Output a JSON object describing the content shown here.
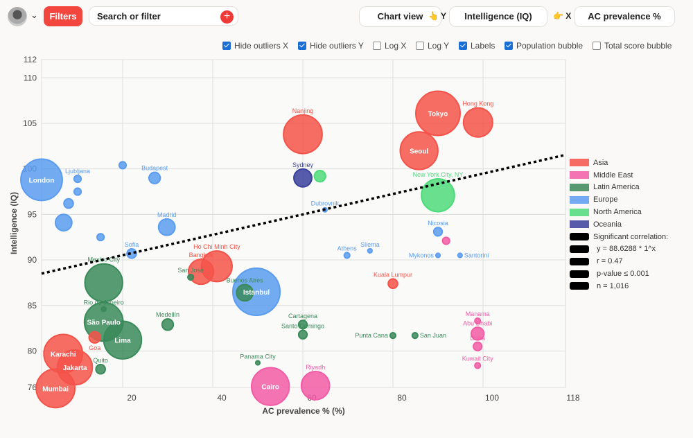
{
  "toolbar": {
    "filters_label": "Filters",
    "search_placeholder": "Search or filter",
    "chart_view_label": "Chart view",
    "y_prefix": "👆 Y",
    "y_value": "Intelligence (IQ)",
    "x_prefix": "👉 X",
    "x_value": "AC prevalence %"
  },
  "options": [
    {
      "label": "Hide outliers X",
      "checked": true
    },
    {
      "label": "Hide outliers Y",
      "checked": true
    },
    {
      "label": "Log X",
      "checked": false
    },
    {
      "label": "Log Y",
      "checked": false
    },
    {
      "label": "Labels",
      "checked": true
    },
    {
      "label": "Population bubble",
      "checked": true
    },
    {
      "label": "Total score bubble",
      "checked": false
    }
  ],
  "chart_data": {
    "type": "scatter",
    "xlabel": "AC prevalence % (%)",
    "ylabel": "Intelligence (IQ)",
    "xlim": [
      2,
      118
    ],
    "ylim": [
      76,
      112
    ],
    "xticks": [
      20,
      40,
      60,
      80,
      100,
      118
    ],
    "yticks": [
      76,
      80,
      85,
      90,
      95,
      100,
      105,
      110,
      112
    ],
    "grid": true,
    "legend_position": "right",
    "colors": {
      "Asia": "#f4534a",
      "Middle East": "#f25ca6",
      "Latin America": "#3a8a5a",
      "Europe": "#5a9cf0",
      "North America": "#4ddb7a",
      "Oceania": "#3a3f9c"
    },
    "legend": [
      "Asia",
      "Middle East",
      "Latin America",
      "Europe",
      "North America",
      "Oceania"
    ],
    "trend": {
      "points": [
        [
          2,
          88.5
        ],
        [
          118,
          101.5
        ]
      ],
      "lines": [
        "Significant correlation:",
        "y = 88.6288 * 1^x",
        "r = 0.47",
        "p-value ≤ 0.001",
        "n = 1,016"
      ]
    },
    "points": [
      {
        "label": "Tokyo",
        "region": "Asia",
        "x": 90,
        "y": 106.1,
        "size": 0.94,
        "inside": true
      },
      {
        "label": "Hong Kong",
        "region": "Asia",
        "x": 98.9,
        "y": 105.1,
        "size": 0.62
      },
      {
        "label": "Seoul",
        "region": "Asia",
        "x": 85.8,
        "y": 102,
        "size": 0.8,
        "inside": true
      },
      {
        "label": "Nanjing",
        "region": "Asia",
        "x": 60,
        "y": 103.8,
        "size": 0.82
      },
      {
        "label": "Ho Chi Minh City",
        "region": "Asia",
        "x": 40.9,
        "y": 89.3,
        "size": 0.65
      },
      {
        "label": "Bangkok",
        "region": "Asia",
        "x": 37.4,
        "y": 88.7,
        "size": 0.53
      },
      {
        "label": "Kuala Lumpur",
        "region": "Asia",
        "x": 80,
        "y": 87.4,
        "size": 0.2
      },
      {
        "label": "Karachi",
        "region": "Asia",
        "x": 6.8,
        "y": 79.7,
        "size": 0.82,
        "inside": true
      },
      {
        "label": "Jakarta",
        "region": "Asia",
        "x": 9.4,
        "y": 78.2,
        "size": 0.74,
        "inside": true
      },
      {
        "label": "Mumbai",
        "region": "Asia",
        "x": 5.1,
        "y": 75.9,
        "size": 0.82,
        "inside": true
      },
      {
        "label": "Goa",
        "region": "Asia",
        "x": 13.8,
        "y": 81.5,
        "size": 0.24
      },
      {
        "label": "Cairo",
        "region": "Middle East",
        "x": 52.8,
        "y": 76.1,
        "size": 0.8,
        "inside": true
      },
      {
        "label": "Riyadh",
        "region": "Middle East",
        "x": 62.8,
        "y": 76.2,
        "size": 0.6
      },
      {
        "label": "Manama",
        "region": "Middle East",
        "x": 98.8,
        "y": 83.3,
        "size": 0.12
      },
      {
        "label": "Abu Dhabi",
        "region": "Middle East",
        "x": 98.8,
        "y": 81.9,
        "size": 0.27
      },
      {
        "label": "Doha",
        "region": "Middle East",
        "x": 98.8,
        "y": 80.5,
        "size": 0.18
      },
      {
        "label": "Kuwait City",
        "region": "Middle East",
        "x": 98.8,
        "y": 78.4,
        "size": 0.12
      },
      {
        "label": "",
        "region": "Middle East",
        "x": 91.8,
        "y": 92.1,
        "size": 0.15
      },
      {
        "label": "Mexico City",
        "region": "Latin America",
        "x": 15.8,
        "y": 87.5,
        "size": 0.8
      },
      {
        "label": "São Paulo",
        "region": "Latin America",
        "x": 15.8,
        "y": 83.2,
        "size": 0.82,
        "inside": true
      },
      {
        "label": "Rio de Janeiro",
        "region": "Latin America",
        "x": 15.8,
        "y": 84.6,
        "size": 0.1
      },
      {
        "label": "Lima",
        "region": "Latin America",
        "x": 20,
        "y": 81.2,
        "size": 0.8,
        "inside": true
      },
      {
        "label": "Medellín",
        "region": "Latin America",
        "x": 30,
        "y": 82.9,
        "size": 0.24
      },
      {
        "label": "Buenos Aires",
        "region": "Latin America",
        "x": 47.1,
        "y": 86.4,
        "size": 0.35
      },
      {
        "label": "San José",
        "region": "Latin America",
        "x": 35.1,
        "y": 88.1,
        "size": 0.12
      },
      {
        "label": "Cartagena",
        "region": "Latin America",
        "x": 60,
        "y": 82.9,
        "size": 0.18
      },
      {
        "label": "Santo Domingo",
        "region": "Latin America",
        "x": 60,
        "y": 81.8,
        "size": 0.18
      },
      {
        "label": "Punta Cana",
        "region": "Latin America",
        "x": 80,
        "y": 81.7,
        "size": 0.12
      },
      {
        "label": "San Juan",
        "region": "Latin America",
        "x": 84.9,
        "y": 81.7,
        "size": 0.12
      },
      {
        "label": "Panama City",
        "region": "Latin America",
        "x": 50,
        "y": 78.7,
        "size": 0.09
      },
      {
        "label": "Quito",
        "region": "Latin America",
        "x": 15.1,
        "y": 78,
        "size": 0.2
      },
      {
        "label": "London",
        "region": "Europe",
        "x": 2,
        "y": 98.8,
        "size": 0.88,
        "inside": true
      },
      {
        "label": "Madrid",
        "region": "Europe",
        "x": 29.8,
        "y": 93.6,
        "size": 0.35
      },
      {
        "label": "Budapest",
        "region": "Europe",
        "x": 27.1,
        "y": 99,
        "size": 0.24
      },
      {
        "label": "Ljubljana",
        "region": "Europe",
        "x": 10,
        "y": 98.9,
        "size": 0.15
      },
      {
        "label": "",
        "region": "Europe",
        "x": 20,
        "y": 100.4,
        "size": 0.15
      },
      {
        "label": "",
        "region": "Europe",
        "x": 6.9,
        "y": 94.1,
        "size": 0.35
      },
      {
        "label": "",
        "region": "Europe",
        "x": 15.1,
        "y": 92.5,
        "size": 0.15
      },
      {
        "label": "Sofia",
        "region": "Europe",
        "x": 22,
        "y": 90.7,
        "size": 0.2
      },
      {
        "label": "Istanbul",
        "region": "Europe",
        "x": 49.7,
        "y": 86.5,
        "size": 1.0,
        "inside": true
      },
      {
        "label": "Dubrovnik",
        "region": "Europe",
        "x": 64.9,
        "y": 95.5,
        "size": 0.09
      },
      {
        "label": "Athens",
        "region": "Europe",
        "x": 69.8,
        "y": 90.5,
        "size": 0.12
      },
      {
        "label": "Sliema",
        "region": "Europe",
        "x": 74.9,
        "y": 91,
        "size": 0.09
      },
      {
        "label": "Nicosia",
        "region": "Europe",
        "x": 90,
        "y": 93.1,
        "size": 0.18
      },
      {
        "label": "Mykonos",
        "region": "Europe",
        "x": 90,
        "y": 90.5,
        "size": 0.09
      },
      {
        "label": "Santorini",
        "region": "Europe",
        "x": 94.9,
        "y": 90.5,
        "size": 0.09
      },
      {
        "label": "",
        "region": "Europe",
        "x": 10,
        "y": 97.5,
        "size": 0.15
      },
      {
        "label": "",
        "region": "Europe",
        "x": 8,
        "y": 96.2,
        "size": 0.2
      },
      {
        "label": "New York City, NY",
        "region": "North America",
        "x": 90,
        "y": 97.1,
        "size": 0.7
      },
      {
        "label": "",
        "region": "North America",
        "x": 63.8,
        "y": 99.2,
        "size": 0.24
      },
      {
        "label": "Sydney",
        "region": "Oceania",
        "x": 60,
        "y": 99,
        "size": 0.38
      }
    ]
  }
}
